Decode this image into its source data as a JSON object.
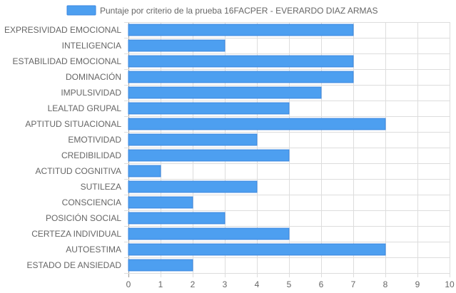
{
  "chart_data": {
    "type": "bar",
    "orientation": "horizontal",
    "categories": [
      "EXPRESIVIDAD EMOCIONAL",
      "INTELIGENCIA",
      "ESTABILIDAD EMOCIONAL",
      "DOMINACIÓN",
      "IMPULSIVIDAD",
      "LEALTAD GRUPAL",
      "APTITUD SITUACIONAL",
      "EMOTIVIDAD",
      "CREDIBILIDAD",
      "ACTITUD COGNITIVA",
      "SUTILEZA",
      "CONSCIENCIA",
      "POSICIÓN SOCIAL",
      "CERTEZA INDIVIDUAL",
      "AUTOESTIMA",
      "ESTADO DE ANSIEDAD"
    ],
    "series": [
      {
        "name": "Puntaje por criterio de la prueba 16FACPER - EVERARDO DIAZ ARMAS",
        "values": [
          7,
          3,
          7,
          7,
          6,
          5,
          8,
          4,
          5,
          1,
          4,
          2,
          3,
          5,
          8,
          2
        ]
      }
    ],
    "xlim": [
      0,
      10
    ],
    "xticks": [
      "0",
      "1",
      "2",
      "3",
      "4",
      "5",
      "6",
      "7",
      "8",
      "9",
      "10"
    ],
    "grid": true,
    "legend_position": "top-center",
    "colors": {
      "bar_fill": "#4d9ff0",
      "bar_stroke": "#3a87e0",
      "grid": "#dddddd",
      "axis": "#999999",
      "text": "#666666"
    }
  }
}
